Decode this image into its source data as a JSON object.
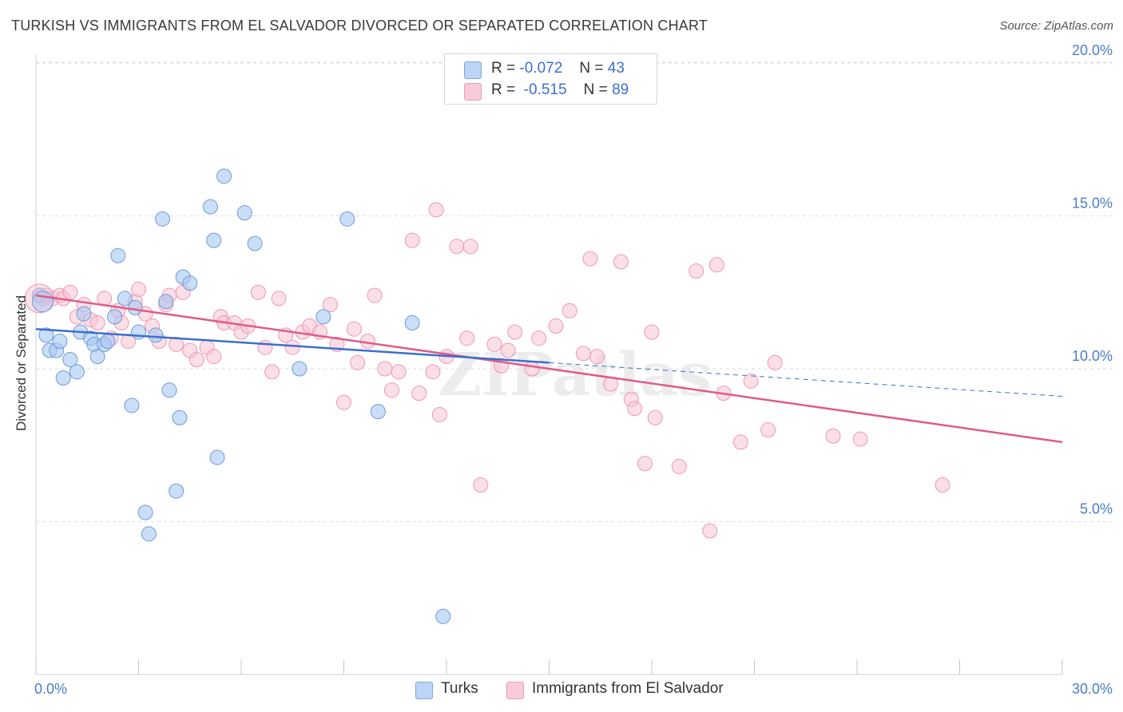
{
  "header": {
    "title": "TURKISH VS IMMIGRANTS FROM EL SALVADOR DIVORCED OR SEPARATED CORRELATION CHART",
    "source": "Source: ZipAtlas.com"
  },
  "legend": {
    "rows": [
      {
        "r_label": "R =",
        "r_value": "-0.072",
        "n_label": "N =",
        "n_value": "43"
      },
      {
        "r_label": "R =",
        "r_value": "-0.515",
        "n_label": "N =",
        "n_value": "89"
      }
    ]
  },
  "colors": {
    "turks_fill": "#a9c8f2",
    "turks_stroke": "#6f9ad8",
    "turks_line": "#3a6fd0",
    "salv_fill": "#f8c4d4",
    "salv_stroke": "#ee97b3",
    "salv_line": "#e05a8a",
    "tick_label": "#4a7cc9",
    "grid": "#dddddd"
  },
  "chart_data": {
    "type": "scatter",
    "title": "TURKISH VS IMMIGRANTS FROM EL SALVADOR DIVORCED OR SEPARATED CORRELATION CHART",
    "xlabel": "",
    "ylabel": "Divorced or Separated",
    "xlim": [
      0,
      30
    ],
    "ylim": [
      0,
      20.6
    ],
    "x_tick_labels": [
      "0.0%",
      "30.0%"
    ],
    "y_ticks": [
      5,
      10,
      15,
      20
    ],
    "y_tick_labels": [
      "5.0%",
      "10.0%",
      "15.0%",
      "20.0%"
    ],
    "grid": true,
    "legend_position": "top-center",
    "watermark": "ZIPatlas",
    "series": [
      {
        "name": "Turks",
        "r": -0.072,
        "n": 43,
        "trend": {
          "x0": 0,
          "y0": 11.3,
          "x1": 15,
          "y1": 10.2,
          "dashed_to_x": 30,
          "dashed_to_y": 9.1
        },
        "points": [
          [
            0.1,
            12.4
          ],
          [
            0.3,
            11.1
          ],
          [
            0.4,
            10.6
          ],
          [
            0.6,
            10.6
          ],
          [
            0.7,
            10.9
          ],
          [
            0.8,
            9.7
          ],
          [
            1.0,
            10.3
          ],
          [
            1.2,
            9.9
          ],
          [
            1.3,
            11.2
          ],
          [
            1.4,
            11.8
          ],
          [
            1.6,
            11.0
          ],
          [
            1.7,
            10.8
          ],
          [
            1.8,
            10.4
          ],
          [
            2.0,
            10.8
          ],
          [
            2.1,
            10.9
          ],
          [
            2.3,
            11.7
          ],
          [
            2.4,
            13.7
          ],
          [
            2.6,
            12.3
          ],
          [
            2.8,
            8.8
          ],
          [
            2.9,
            12.0
          ],
          [
            3.0,
            11.2
          ],
          [
            3.2,
            5.3
          ],
          [
            3.3,
            4.6
          ],
          [
            3.5,
            11.1
          ],
          [
            3.7,
            14.9
          ],
          [
            3.8,
            12.2
          ],
          [
            3.9,
            9.3
          ],
          [
            4.2,
            8.4
          ],
          [
            4.3,
            13.0
          ],
          [
            4.5,
            12.8
          ],
          [
            5.1,
            15.3
          ],
          [
            5.2,
            14.2
          ],
          [
            5.3,
            7.1
          ],
          [
            5.5,
            16.3
          ],
          [
            6.1,
            15.1
          ],
          [
            6.4,
            14.1
          ],
          [
            4.1,
            6.0
          ],
          [
            7.7,
            10.0
          ],
          [
            8.4,
            11.7
          ],
          [
            9.1,
            14.9
          ],
          [
            10.0,
            8.6
          ],
          [
            11.0,
            11.5
          ],
          [
            11.9,
            1.9
          ]
        ]
      },
      {
        "name": "Immigrants from El Salvador",
        "r": -0.515,
        "n": 89,
        "trend": {
          "x0": 0,
          "y0": 12.4,
          "x1": 30,
          "y1": 7.6
        },
        "points": [
          [
            0.1,
            12.4
          ],
          [
            0.3,
            12.4
          ],
          [
            0.5,
            12.3
          ],
          [
            0.7,
            12.4
          ],
          [
            0.8,
            12.3
          ],
          [
            1.0,
            12.5
          ],
          [
            1.2,
            11.7
          ],
          [
            1.4,
            12.1
          ],
          [
            1.6,
            11.6
          ],
          [
            1.8,
            11.5
          ],
          [
            2.0,
            12.3
          ],
          [
            2.2,
            11.0
          ],
          [
            2.4,
            11.9
          ],
          [
            2.5,
            11.5
          ],
          [
            2.7,
            10.9
          ],
          [
            2.9,
            12.2
          ],
          [
            3.0,
            12.6
          ],
          [
            3.2,
            11.8
          ],
          [
            3.4,
            11.4
          ],
          [
            3.6,
            10.9
          ],
          [
            3.8,
            12.1
          ],
          [
            3.9,
            12.4
          ],
          [
            4.1,
            10.8
          ],
          [
            4.3,
            12.5
          ],
          [
            4.5,
            10.6
          ],
          [
            4.7,
            10.3
          ],
          [
            5.0,
            10.7
          ],
          [
            5.2,
            10.4
          ],
          [
            5.4,
            11.7
          ],
          [
            5.5,
            11.5
          ],
          [
            5.8,
            11.5
          ],
          [
            6.0,
            11.2
          ],
          [
            6.2,
            11.4
          ],
          [
            6.5,
            12.5
          ],
          [
            6.7,
            10.7
          ],
          [
            6.9,
            9.9
          ],
          [
            7.1,
            12.3
          ],
          [
            7.3,
            11.1
          ],
          [
            7.5,
            10.7
          ],
          [
            7.8,
            11.2
          ],
          [
            8.0,
            11.4
          ],
          [
            8.3,
            11.2
          ],
          [
            8.6,
            12.1
          ],
          [
            8.8,
            10.8
          ],
          [
            9.0,
            8.9
          ],
          [
            9.3,
            11.3
          ],
          [
            9.4,
            10.2
          ],
          [
            9.7,
            10.9
          ],
          [
            9.9,
            12.4
          ],
          [
            10.2,
            10.0
          ],
          [
            10.4,
            9.3
          ],
          [
            10.6,
            9.9
          ],
          [
            11.0,
            14.2
          ],
          [
            11.2,
            9.2
          ],
          [
            11.6,
            9.9
          ],
          [
            11.7,
            15.2
          ],
          [
            12.0,
            10.4
          ],
          [
            12.3,
            14.0
          ],
          [
            12.6,
            11.0
          ],
          [
            12.7,
            14.0
          ],
          [
            13.0,
            6.2
          ],
          [
            13.4,
            10.8
          ],
          [
            13.6,
            10.1
          ],
          [
            13.8,
            10.6
          ],
          [
            14.0,
            11.2
          ],
          [
            14.5,
            10.0
          ],
          [
            14.7,
            11.0
          ],
          [
            15.2,
            11.4
          ],
          [
            15.6,
            11.9
          ],
          [
            16.0,
            10.5
          ],
          [
            16.2,
            13.6
          ],
          [
            16.4,
            10.4
          ],
          [
            16.8,
            9.5
          ],
          [
            17.1,
            13.5
          ],
          [
            17.4,
            9.0
          ],
          [
            17.5,
            8.7
          ],
          [
            17.8,
            6.9
          ],
          [
            18.0,
            11.2
          ],
          [
            18.1,
            8.4
          ],
          [
            18.8,
            6.8
          ],
          [
            19.3,
            13.2
          ],
          [
            19.7,
            4.7
          ],
          [
            19.9,
            13.4
          ],
          [
            20.1,
            9.2
          ],
          [
            20.6,
            7.6
          ],
          [
            20.9,
            9.6
          ],
          [
            21.4,
            8.0
          ],
          [
            21.6,
            10.2
          ],
          [
            23.3,
            7.8
          ],
          [
            24.1,
            7.7
          ],
          [
            26.5,
            6.2
          ],
          [
            11.8,
            8.5
          ],
          [
            0.2,
            12.3
          ]
        ]
      }
    ]
  },
  "bottom_legend": [
    "Turks",
    "Immigrants from El Salvador"
  ]
}
